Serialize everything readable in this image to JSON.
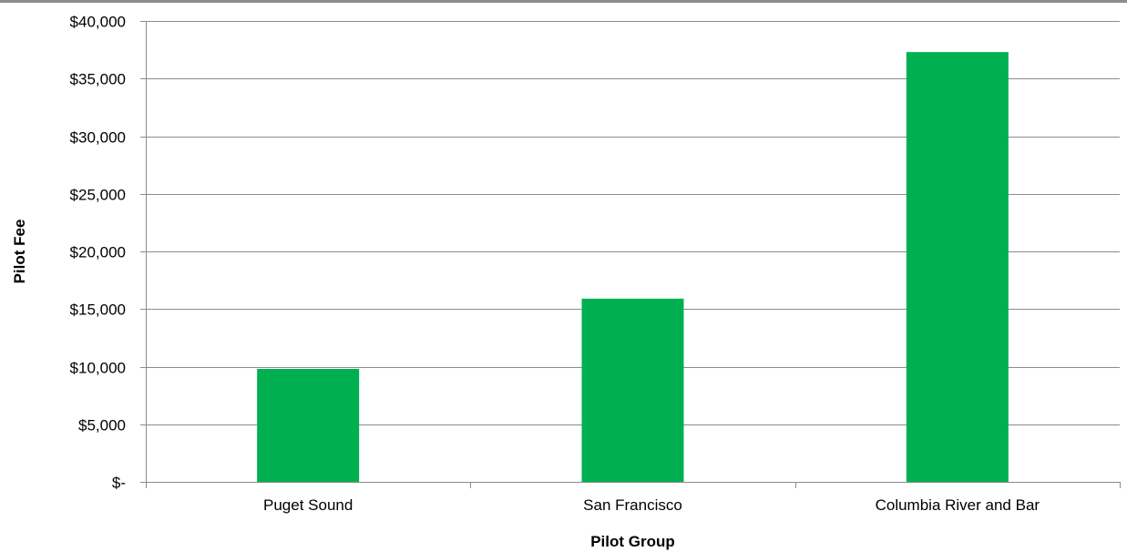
{
  "chart_data": {
    "type": "bar",
    "title": "",
    "xlabel": "Pilot Group",
    "ylabel": "Pilot Fee",
    "categories": [
      "Puget Sound",
      "San Francisco",
      "Columbia River and Bar"
    ],
    "values": [
      9800,
      15900,
      37300
    ],
    "ylim": [
      0,
      40000
    ],
    "yticks": [
      0,
      5000,
      10000,
      15000,
      20000,
      25000,
      30000,
      35000,
      40000
    ],
    "ytick_labels": [
      "$-",
      "$5,000",
      "$10,000",
      "$15,000",
      "$20,000",
      "$25,000",
      "$30,000",
      "$35,000",
      "$40,000"
    ],
    "bar_color": "#00b050",
    "grid": true,
    "legend": "none"
  }
}
